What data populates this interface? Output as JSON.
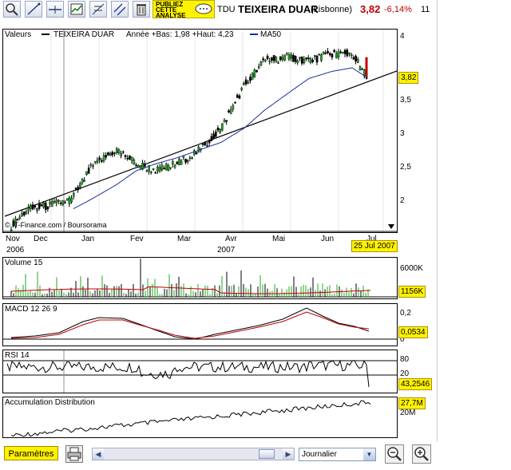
{
  "toolbar": {
    "publiez": [
      "PUBLIEZ",
      "CETTE",
      "ANALYSE"
    ],
    "symbol": "TDU",
    "name": "TEIXEIRA DUAR",
    "market": "(Lisbonne)",
    "price": "3,82",
    "change": "-6,14%",
    "count": "11",
    "buttons": [
      "zoom-in-icon",
      "draw-line-icon",
      "horizontal-line-icon",
      "indicator-icon",
      "fibonacci-icon",
      "parallel-lines-icon",
      "trash-icon"
    ]
  },
  "colors": {
    "accent": "#fff200",
    "price": "#c00000",
    "ma": "#1c2f9c",
    "signal": "#c00000"
  },
  "main_chart": {
    "legend_valeurs": "Valeurs",
    "legend_series": "TEIXEIRA DUAR",
    "legend_stats": "Année +Bas: 1,98 +Haut: 4,23",
    "legend_ma": "MA50",
    "copyright": "© IT-Finance.com / Boursorama",
    "y_ticks": [
      "4",
      "3,5",
      "3",
      "2,5",
      "2"
    ],
    "last_price": "3,82",
    "month_labels": [
      "Nov",
      "Dec",
      "Jan",
      "Fev",
      "Mar",
      "Avr",
      "Mai",
      "Jun",
      "Jul"
    ],
    "year_labels": [
      "2006",
      "2007"
    ],
    "date_box": "25 Jul 2007"
  },
  "volume": {
    "title": "Volume 15",
    "tick": "6000K",
    "last": "1156K"
  },
  "macd": {
    "title": "MACD 12 26 9",
    "ticks": [
      "0,2",
      "0"
    ],
    "last": "0,0534"
  },
  "rsi": {
    "title": "RSI 14",
    "ticks": [
      "80",
      "20"
    ],
    "last": "43,2546"
  },
  "ad": {
    "title": "Accumulation Distribution",
    "tick": "20M",
    "last": "27,7M"
  },
  "bottom": {
    "params": "Paramètres",
    "period": "Journalier"
  },
  "chart_data": {
    "type": "line",
    "title": "TEIXEIRA DUAR",
    "x": [
      "2006-11-20",
      "2006-12-01",
      "2006-12-15",
      "2007-01-01",
      "2007-01-15",
      "2007-02-01",
      "2007-02-15",
      "2007-03-01",
      "2007-03-15",
      "2007-04-01",
      "2007-04-15",
      "2007-05-01",
      "2007-05-15",
      "2007-06-01",
      "2007-06-15",
      "2007-07-01",
      "2007-07-15",
      "2007-07-25"
    ],
    "series": [
      {
        "name": "TEIXEIRA DUAR",
        "values": [
          1.71,
          1.95,
          2.0,
          2.1,
          2.55,
          2.8,
          2.6,
          2.5,
          2.6,
          2.8,
          3.1,
          3.7,
          4.05,
          4.1,
          4.05,
          4.15,
          4.15,
          3.82
        ]
      },
      {
        "name": "MA50",
        "values": [
          null,
          null,
          null,
          1.95,
          2.1,
          2.3,
          2.5,
          2.6,
          2.68,
          2.8,
          2.9,
          3.1,
          3.35,
          3.6,
          3.8,
          3.9,
          3.95,
          3.82
        ]
      }
    ],
    "ylim": [
      1.7,
      4.4
    ],
    "year_range": [
      1.98,
      4.23
    ],
    "sub_charts": [
      {
        "name": "Volume 15",
        "last": 1156
      },
      {
        "name": "MACD 12 26 9",
        "last": 0.0534
      },
      {
        "name": "RSI 14",
        "last": 43.2546,
        "levels": [
          80,
          20
        ]
      },
      {
        "name": "Accumulation Distribution",
        "last": 27.7
      }
    ]
  }
}
